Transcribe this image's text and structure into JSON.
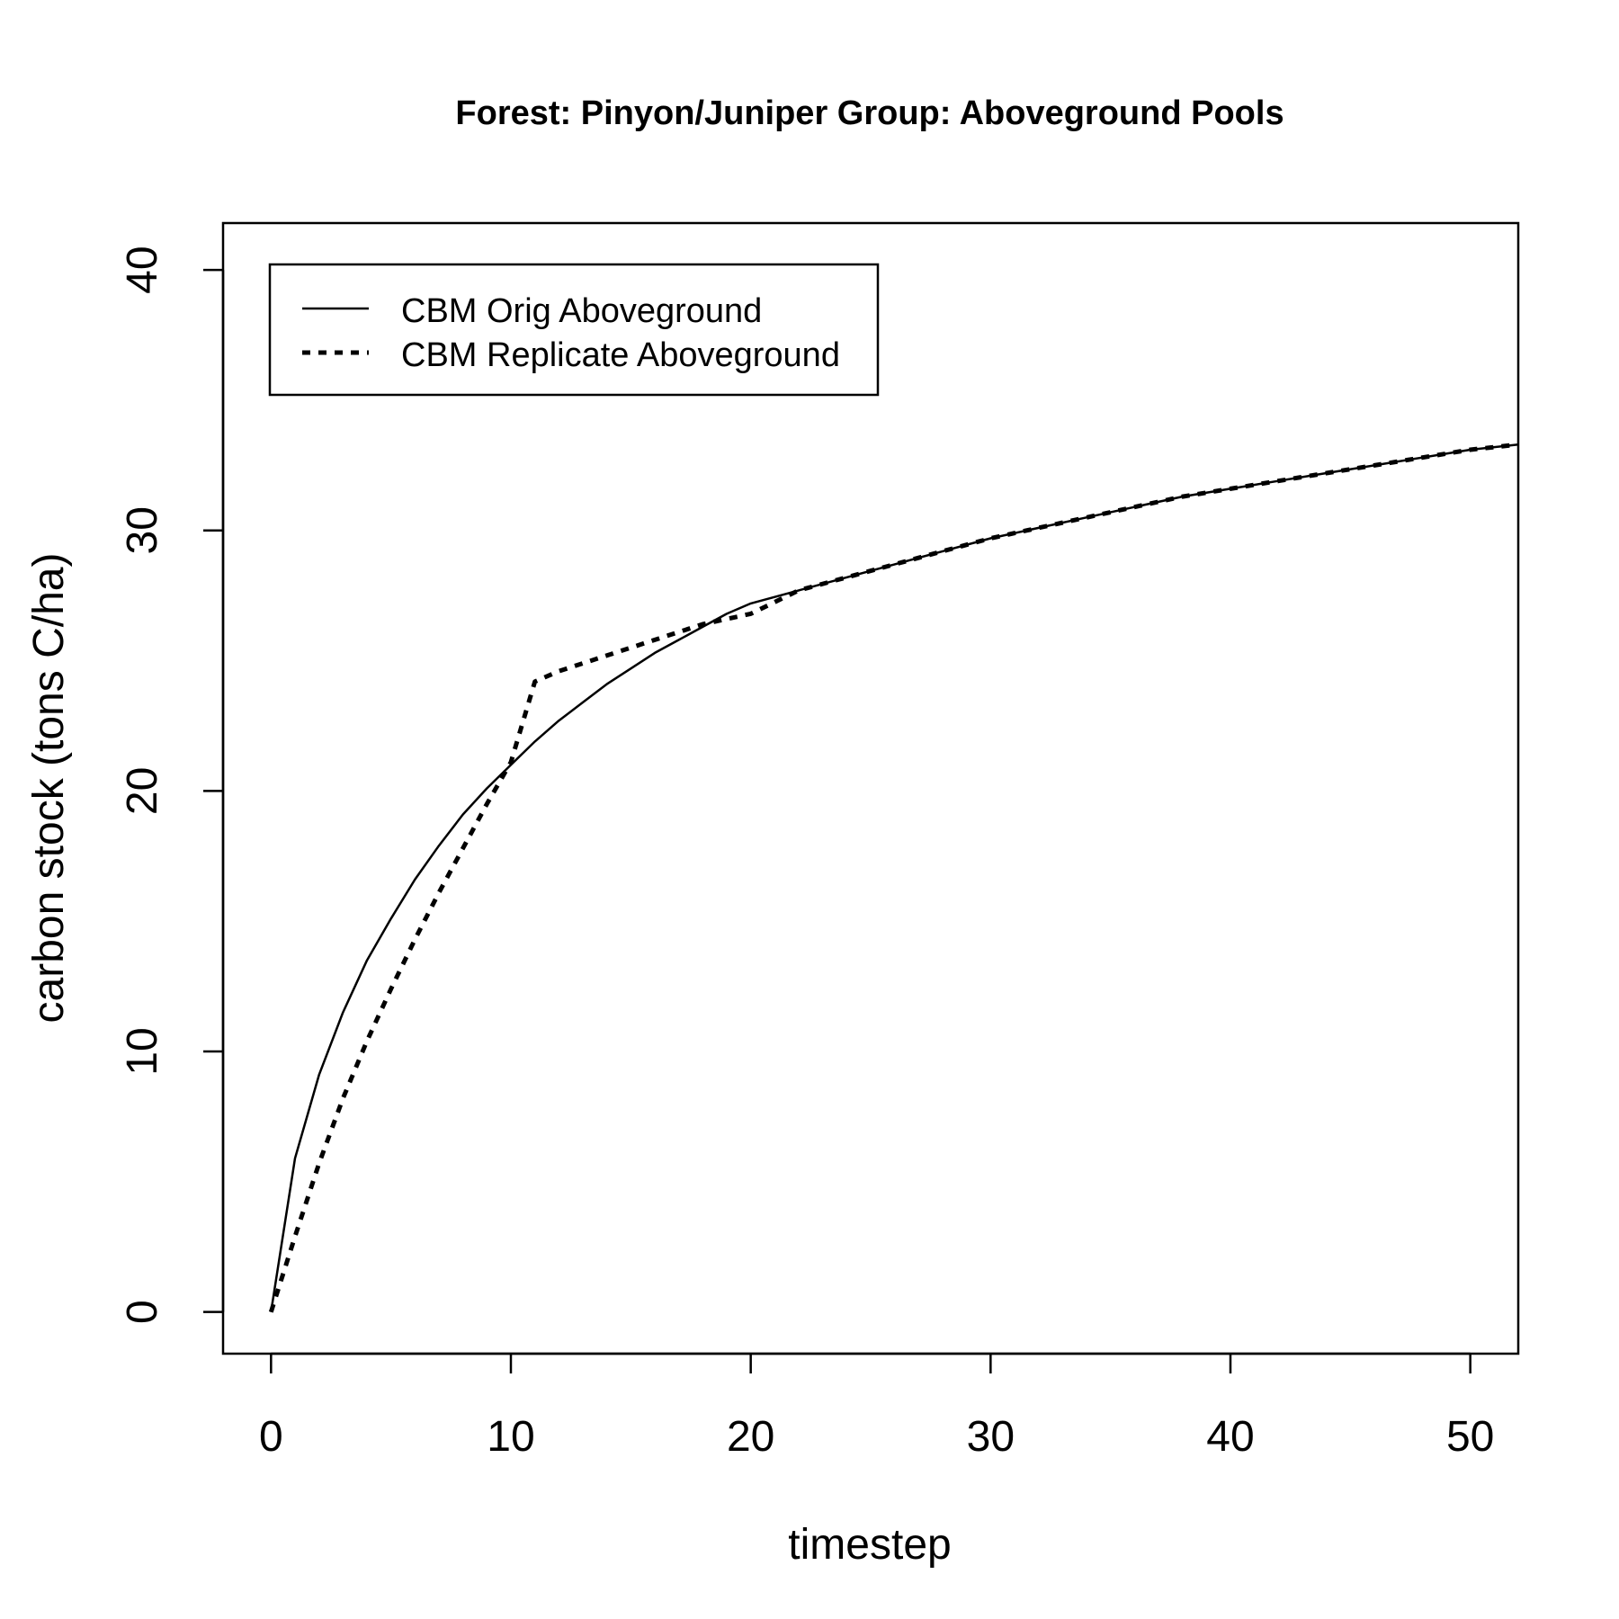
{
  "chart_data": {
    "type": "line",
    "title": "Forest: Pinyon/Juniper Group: Aboveground Pools",
    "xlabel": "timestep",
    "ylabel": "carbon stock (tons C/ha)",
    "xlim": [
      -2,
      52
    ],
    "ylim": [
      -1.6,
      41.8
    ],
    "xticks": [
      0,
      10,
      20,
      30,
      40,
      50
    ],
    "yticks": [
      0,
      10,
      20,
      30,
      40
    ],
    "grid": false,
    "legend_position": "top-left",
    "series": [
      {
        "name": "CBM Orig Aboveground",
        "line_style": "solid",
        "x": [
          0,
          1,
          2,
          3,
          4,
          5,
          6,
          7,
          8,
          9,
          10,
          11,
          12,
          13,
          14,
          15,
          16,
          17,
          18,
          19,
          20,
          22,
          24,
          26,
          28,
          30,
          32,
          34,
          36,
          38,
          40,
          42,
          44,
          46,
          48,
          50,
          52
        ],
        "values": [
          0,
          5.9,
          9.1,
          11.5,
          13.5,
          15.1,
          16.6,
          17.9,
          19.1,
          20.1,
          21.0,
          21.9,
          22.7,
          23.4,
          24.1,
          24.7,
          25.3,
          25.8,
          26.3,
          26.8,
          27.2,
          27.7,
          28.2,
          28.7,
          29.2,
          29.7,
          30.1,
          30.5,
          30.9,
          31.3,
          31.6,
          31.9,
          32.2,
          32.5,
          32.8,
          33.1,
          33.3
        ]
      },
      {
        "name": "CBM Replicate Aboveground",
        "line_style": "dotted",
        "x": [
          0,
          1,
          2,
          3,
          4,
          5,
          6,
          7,
          8,
          9,
          10,
          11,
          12,
          13,
          14,
          15,
          16,
          17,
          18,
          19,
          20,
          22,
          24,
          26,
          28,
          30,
          32,
          34,
          36,
          38,
          40,
          42,
          44,
          46,
          48,
          50,
          52
        ],
        "values": [
          0,
          2.9,
          5.7,
          8.2,
          10.4,
          12.4,
          14.3,
          16.1,
          17.8,
          19.5,
          21.1,
          24.2,
          24.6,
          24.9,
          25.2,
          25.5,
          25.8,
          26.1,
          26.4,
          26.6,
          26.8,
          27.7,
          28.2,
          28.7,
          29.2,
          29.7,
          30.1,
          30.5,
          30.9,
          31.3,
          31.6,
          31.9,
          32.2,
          32.5,
          32.8,
          33.1,
          33.3
        ]
      }
    ]
  }
}
